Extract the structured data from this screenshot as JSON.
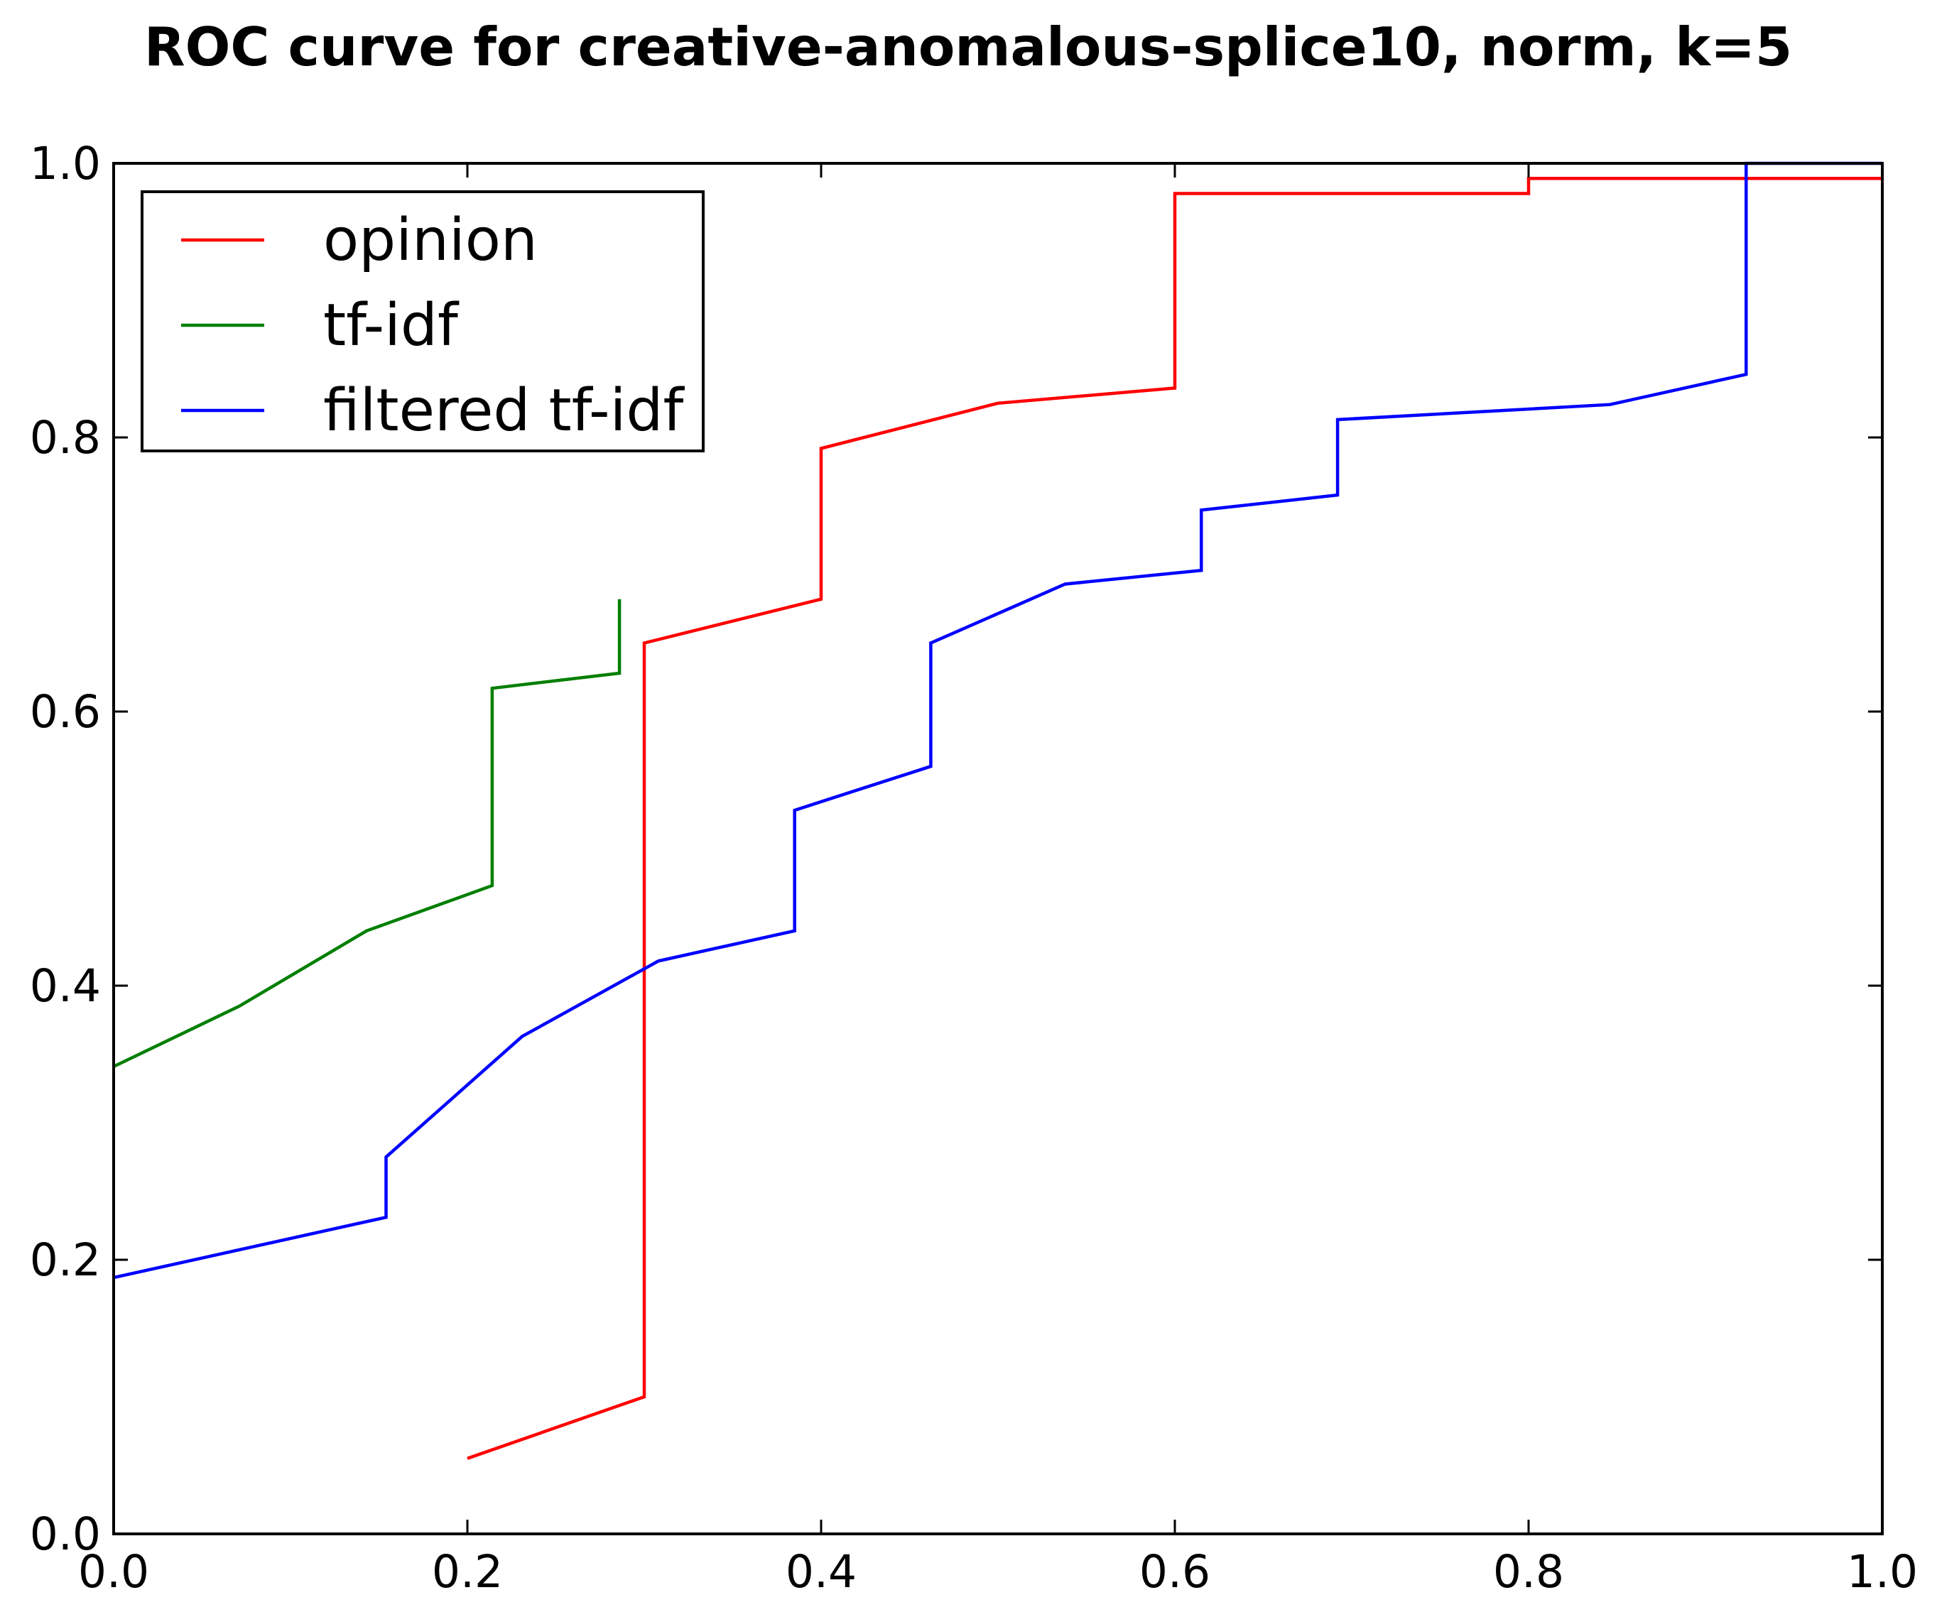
{
  "chart_data": {
    "type": "line",
    "title": "ROC curve for creative-anomalous-splice10, norm, k=5",
    "xlabel": "",
    "ylabel": "",
    "xlim": [
      0.0,
      1.0
    ],
    "ylim": [
      0.0,
      1.0
    ],
    "x_ticks": [
      0.0,
      0.2,
      0.4,
      0.6,
      0.8,
      1.0
    ],
    "y_ticks": [
      0.0,
      0.2,
      0.4,
      0.6,
      0.8,
      1.0
    ],
    "x_tick_labels": [
      "0.0",
      "0.2",
      "0.4",
      "0.6",
      "0.8",
      "1.0"
    ],
    "y_tick_labels": [
      "0.0",
      "0.2",
      "0.4",
      "0.6",
      "0.8",
      "1.0"
    ],
    "grid": false,
    "legend_position": "top-left",
    "series": [
      {
        "name": "opinion",
        "color": "#ff0000",
        "points": [
          [
            0.2,
            0.055
          ],
          [
            0.3,
            0.1
          ],
          [
            0.3,
            0.65
          ],
          [
            0.4,
            0.682
          ],
          [
            0.4,
            0.792
          ],
          [
            0.5,
            0.825
          ],
          [
            0.6,
            0.836
          ],
          [
            0.6,
            0.978
          ],
          [
            0.8,
            0.978
          ],
          [
            0.8,
            0.989
          ],
          [
            1.0,
            0.989
          ]
        ]
      },
      {
        "name": "tf-idf",
        "color": "#007f00",
        "points": [
          [
            0.0,
            0.341
          ],
          [
            0.071,
            0.385
          ],
          [
            0.143,
            0.44
          ],
          [
            0.214,
            0.473
          ],
          [
            0.214,
            0.617
          ],
          [
            0.286,
            0.628
          ],
          [
            0.286,
            0.682
          ]
        ]
      },
      {
        "name": "filtered tf-idf",
        "color": "#0000ff",
        "points": [
          [
            0.0,
            0.187
          ],
          [
            0.154,
            0.231
          ],
          [
            0.154,
            0.275
          ],
          [
            0.231,
            0.363
          ],
          [
            0.308,
            0.418
          ],
          [
            0.385,
            0.44
          ],
          [
            0.385,
            0.528
          ],
          [
            0.462,
            0.56
          ],
          [
            0.462,
            0.65
          ],
          [
            0.538,
            0.693
          ],
          [
            0.615,
            0.703
          ],
          [
            0.615,
            0.747
          ],
          [
            0.692,
            0.758
          ],
          [
            0.692,
            0.813
          ],
          [
            0.846,
            0.824
          ],
          [
            0.923,
            0.846
          ],
          [
            0.923,
            1.0
          ],
          [
            1.0,
            1.0
          ]
        ]
      }
    ]
  }
}
